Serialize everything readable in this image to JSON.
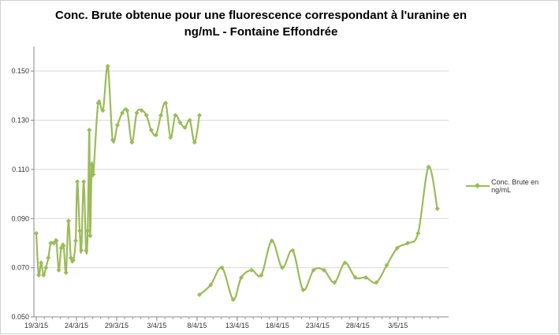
{
  "chart_data": {
    "type": "line",
    "title_line1": "Conc. Brute  obtenue pour une fluorescence correspondant à l'uranine en",
    "title_line2": "ng/mL - Fontaine Effondrée",
    "xlabel": "",
    "ylabel": "",
    "x_start": "19/3/15",
    "x_tick_labels": [
      "19/3/15",
      "24/3/15",
      "29/3/15",
      "3/4/15",
      "8/4/15",
      "13/4/15",
      "18/4/15",
      "23/4/15",
      "28/4/15",
      "3/5/15"
    ],
    "xlim_days": [
      0,
      47
    ],
    "y_tick_labels": [
      "0.050",
      "0.070",
      "0.090",
      "0.110",
      "0.130",
      "0.150"
    ],
    "ylim": [
      0.05,
      0.16
    ],
    "grid": "horizontal",
    "legend_position": "right",
    "color": "#9bbb59",
    "series": [
      {
        "name": "Conc. Brute  en ng/mL",
        "segments": [
          [
            [
              0.0,
              0.084
            ],
            [
              0.3,
              0.067
            ],
            [
              0.6,
              0.072
            ],
            [
              0.9,
              0.067
            ],
            [
              1.2,
              0.07
            ],
            [
              1.5,
              0.074
            ],
            [
              1.8,
              0.08
            ],
            [
              2.2,
              0.08
            ],
            [
              2.5,
              0.081
            ],
            [
              2.8,
              0.069
            ],
            [
              3.1,
              0.078
            ],
            [
              3.4,
              0.079
            ],
            [
              3.7,
              0.068
            ],
            [
              4.0,
              0.089
            ],
            [
              4.3,
              0.074
            ],
            [
              4.6,
              0.073
            ],
            [
              4.9,
              0.081
            ],
            [
              5.1,
              0.105
            ],
            [
              5.4,
              0.085
            ],
            [
              5.6,
              0.077
            ],
            [
              5.9,
              0.105
            ],
            [
              6.2,
              0.077
            ],
            [
              6.4,
              0.085
            ],
            [
              6.6,
              0.126
            ],
            [
              6.7,
              0.083
            ],
            [
              6.9,
              0.112
            ],
            [
              7.1,
              0.108
            ],
            [
              7.7,
              0.137
            ],
            [
              8.3,
              0.134
            ],
            [
              8.9,
              0.152
            ],
            [
              9.5,
              0.122
            ],
            [
              10.1,
              0.128
            ],
            [
              10.7,
              0.133
            ],
            [
              11.3,
              0.134
            ],
            [
              11.9,
              0.121
            ],
            [
              12.5,
              0.133
            ],
            [
              13.1,
              0.134
            ],
            [
              13.7,
              0.132
            ],
            [
              14.3,
              0.126
            ],
            [
              14.9,
              0.124
            ],
            [
              15.5,
              0.132
            ],
            [
              16.1,
              0.137
            ],
            [
              16.7,
              0.123
            ],
            [
              17.3,
              0.132
            ],
            [
              17.9,
              0.129
            ],
            [
              18.5,
              0.127
            ],
            [
              19.1,
              0.13
            ],
            [
              19.7,
              0.121
            ],
            [
              20.3,
              0.132
            ]
          ],
          [
            [
              20.3,
              0.059
            ],
            [
              21.7,
              0.063
            ],
            [
              23.1,
              0.07
            ],
            [
              24.5,
              0.057
            ],
            [
              25.5,
              0.066
            ],
            [
              26.8,
              0.069
            ],
            [
              28.0,
              0.067
            ],
            [
              29.3,
              0.081
            ],
            [
              30.6,
              0.07
            ],
            [
              31.9,
              0.077
            ],
            [
              33.2,
              0.061
            ],
            [
              34.5,
              0.069
            ],
            [
              35.8,
              0.069
            ],
            [
              37.1,
              0.064
            ],
            [
              38.4,
              0.072
            ],
            [
              39.7,
              0.066
            ],
            [
              41.0,
              0.066
            ],
            [
              42.3,
              0.064
            ],
            [
              43.6,
              0.071
            ],
            [
              44.9,
              0.078
            ],
            [
              46.2,
              0.08
            ],
            [
              47.5,
              0.084
            ],
            [
              48.8,
              0.111
            ],
            [
              49.9,
              0.094
            ]
          ]
        ]
      }
    ]
  }
}
